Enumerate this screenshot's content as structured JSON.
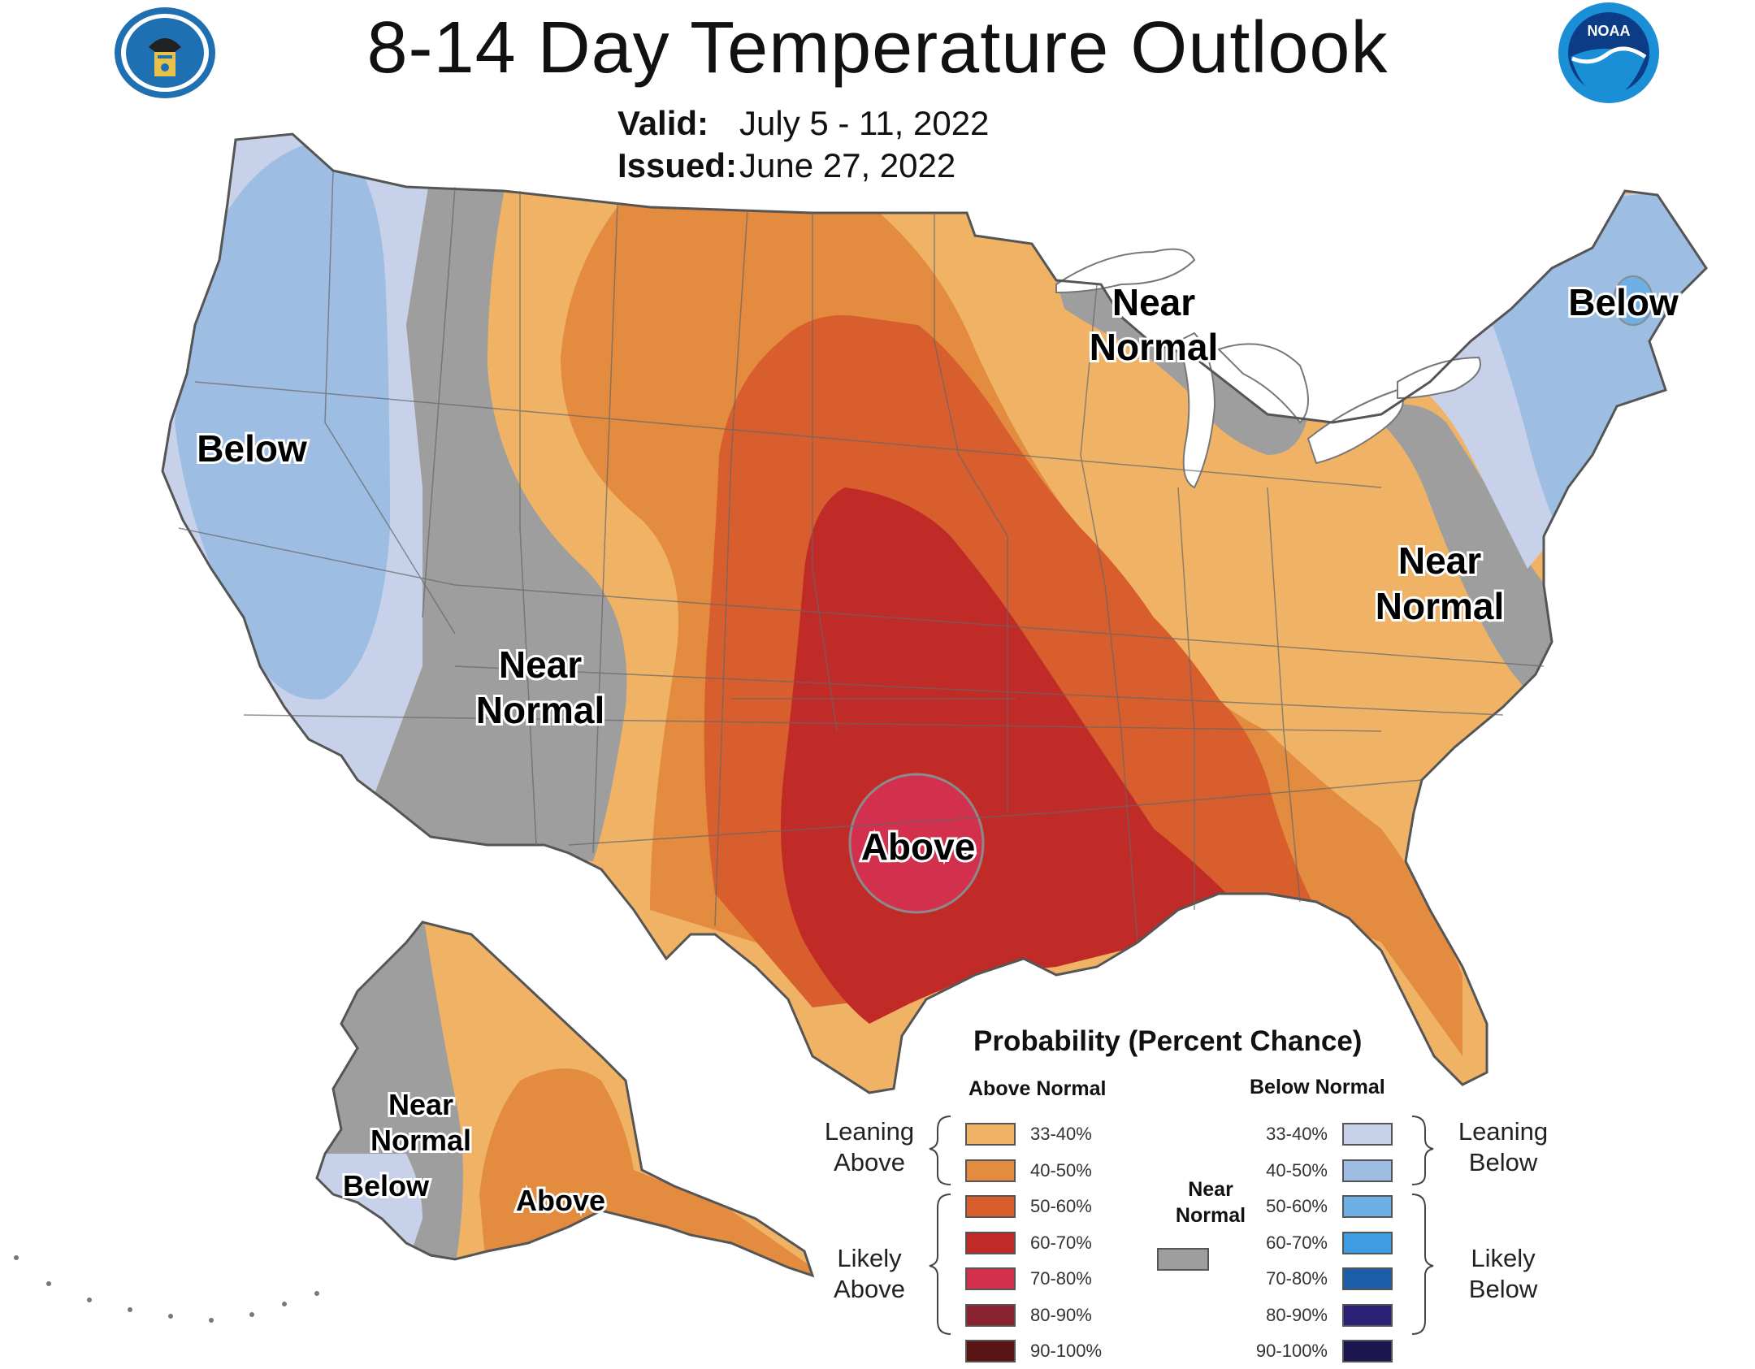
{
  "header": {
    "title": "8-14 Day Temperature Outlook",
    "valid_label": "Valid:",
    "valid_value": "July 5 - 11, 2022",
    "issued_label": "Issued:",
    "issued_value": "June 27, 2022"
  },
  "colors": {
    "above_33_40": "#F0B366",
    "above_40_50": "#E38C3F",
    "above_50_60": "#D95E2D",
    "above_60_70": "#C12B27",
    "above_70_80": "#D2304D",
    "above_80_90": "#8A2330",
    "above_90_100": "#5A1414",
    "near_normal": "#9E9E9E",
    "below_33_40": "#C7D2EA",
    "below_40_50": "#9DBDE3",
    "below_50_60": "#6EAFE6",
    "below_60_70": "#3E9DE2",
    "below_70_80": "#1A5EA8",
    "below_80_90": "#2B2275",
    "below_90_100": "#1C1650"
  },
  "map_labels": {
    "west_below": "Below",
    "west_near_1": "Near",
    "west_near_2": "Normal",
    "above": "Above",
    "great_lakes_near_1": "Near",
    "great_lakes_near_2": "Normal",
    "northeast_below": "Below",
    "east_near_1": "Near",
    "east_near_2": "Normal",
    "alaska_near_1": "Near",
    "alaska_near_2": "Normal",
    "alaska_below": "Below",
    "alaska_above": "Above"
  },
  "legend": {
    "title": "Probability (Percent Chance)",
    "above_header": "Above Normal",
    "below_header": "Below Normal",
    "near_header_1": "Near",
    "near_header_2": "Normal",
    "leaning_above_1": "Leaning",
    "leaning_above_2": "Above",
    "likely_above_1": "Likely",
    "likely_above_2": "Above",
    "leaning_below_1": "Leaning",
    "leaning_below_2": "Below",
    "likely_below_1": "Likely",
    "likely_below_2": "Below",
    "above_ranges": [
      "33-40%",
      "40-50%",
      "50-60%",
      "60-70%",
      "70-80%",
      "80-90%",
      "90-100%"
    ],
    "below_ranges": [
      "33-40%",
      "40-50%",
      "50-60%",
      "60-70%",
      "70-80%",
      "80-90%",
      "90-100%"
    ]
  },
  "logos": {
    "left": "department-of-commerce-seal-icon",
    "right": "noaa-logo-icon",
    "noaa_text": "NOAA"
  }
}
